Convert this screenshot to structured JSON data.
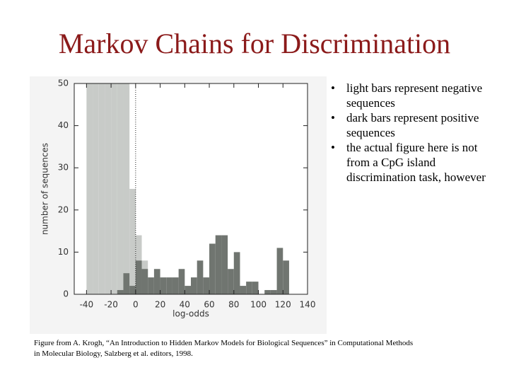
{
  "slide": {
    "title": "Markov Chains for Discrimination",
    "bullets": [
      "light bars represent negative sequences",
      "dark bars represent positive sequences",
      "the actual figure here is not from a CpG island discrimination task, however"
    ],
    "caption": [
      "Figure from A. Krogh, “An Introduction to Hidden Markov Models for Biological Sequences” in Computational Methods",
      "in Molecular Biology, Salzberg et al. editors, 1998."
    ]
  },
  "chart_data": {
    "type": "histogram",
    "x_label": "log-odds",
    "y_label": "number of sequences",
    "bins": [
      -50,
      -45,
      -40,
      -35,
      -30,
      -25,
      -20,
      -15,
      -10,
      -5,
      0,
      5,
      10,
      15,
      20,
      25,
      30,
      35,
      40,
      45,
      50,
      55,
      60,
      65,
      70,
      75,
      80,
      85,
      90,
      95,
      100,
      105,
      110,
      115,
      120,
      125
    ],
    "series": [
      {
        "name": "negative sequences",
        "color": "#c8cbc8",
        "values": [
          0,
          0,
          50,
          50,
          50,
          50,
          50,
          50,
          50,
          25,
          14,
          8,
          0,
          0,
          0,
          0,
          0,
          0,
          0,
          0,
          0,
          0,
          0,
          0,
          0,
          0,
          0,
          0,
          0,
          0,
          0,
          0,
          0,
          0,
          0
        ]
      },
      {
        "name": "positive sequences",
        "color": "#707570",
        "values": [
          0,
          0,
          0,
          0,
          0,
          0,
          0,
          1,
          5,
          2,
          8,
          6,
          4,
          6,
          4,
          4,
          4,
          6,
          2,
          4,
          8,
          4,
          12,
          14,
          14,
          6,
          10,
          2,
          3,
          3,
          0,
          1,
          1,
          11,
          8
        ]
      }
    ],
    "vline": 0,
    "xlim": [
      -50,
      140
    ],
    "xticks": [
      -40,
      -20,
      0,
      20,
      40,
      60,
      80,
      100,
      120,
      140
    ],
    "ylim": [
      0,
      50
    ],
    "yticks": [
      0,
      10,
      20,
      30,
      40,
      50
    ]
  }
}
